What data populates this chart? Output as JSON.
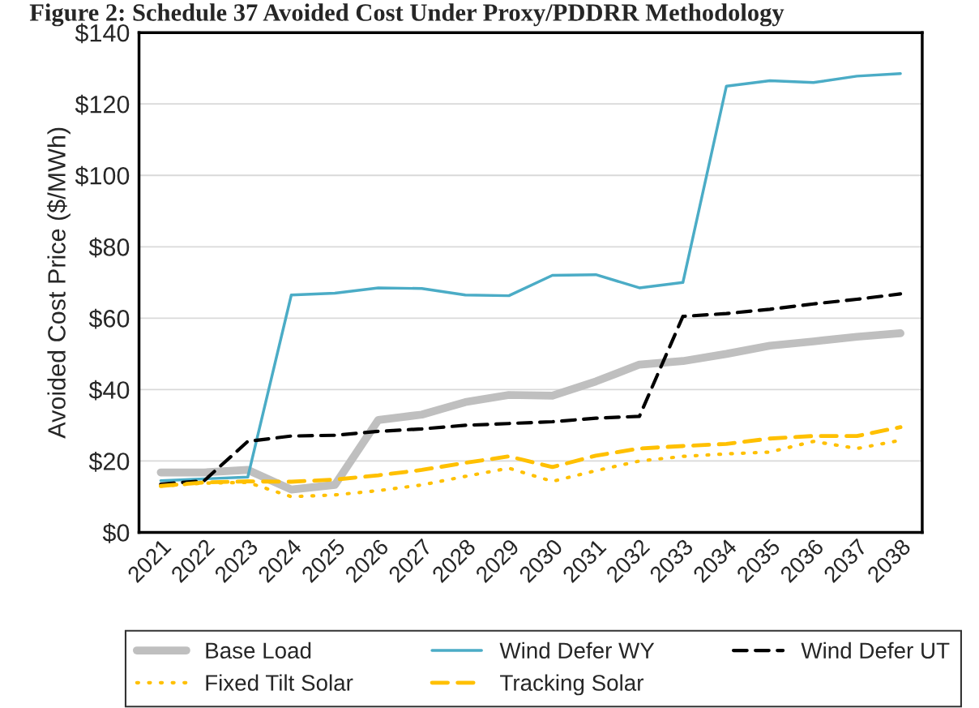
{
  "chart_data": {
    "type": "line",
    "title": "Figure 2: Schedule 37 Avoided Cost Under Proxy/PDDRR Methodology",
    "ylabel": "Avoided Cost Price ($/MWh)",
    "categories": [
      "2021",
      "2022",
      "2023",
      "2024",
      "2025",
      "2026",
      "2027",
      "2028",
      "2029",
      "2030",
      "2031",
      "2032",
      "2033",
      "2034",
      "2035",
      "2036",
      "2037",
      "2038"
    ],
    "series": [
      {
        "name": "Base Load",
        "color": "#bfbfbf",
        "line_style": "solid",
        "values": [
          16.8,
          16.8,
          17.5,
          12,
          13.3,
          31.5,
          33,
          36.5,
          38.5,
          38.3,
          42.3,
          47,
          48,
          50,
          52.3,
          53.5,
          54.8,
          55.8
        ]
      },
      {
        "name": "Wind Defer WY",
        "color": "#4bacc6",
        "line_style": "solid",
        "values": [
          14.5,
          15,
          15.5,
          66.5,
          67,
          68.5,
          68.3,
          66.5,
          66.3,
          72,
          72.2,
          68.5,
          70,
          125,
          126.5,
          126,
          127.8,
          128.5
        ]
      },
      {
        "name": "Wind Defer UT",
        "color": "#000000",
        "line_style": "dashed",
        "values": [
          13.5,
          14.5,
          25.5,
          27,
          27.2,
          28.3,
          29,
          30,
          30.5,
          31,
          32,
          32.5,
          60.5,
          61.3,
          62.5,
          64,
          65.3,
          66.8
        ]
      },
      {
        "name": "Fixed Tilt Solar",
        "color": "#ffc000",
        "line_style": "dotted",
        "values": [
          13,
          13.8,
          14,
          10,
          10.5,
          11.7,
          13.3,
          15.7,
          18,
          14.3,
          17.3,
          20,
          21.3,
          22,
          22.5,
          25.5,
          23.5,
          25.8
        ]
      },
      {
        "name": "Tracking Solar",
        "color": "#ffc000",
        "line_style": "dashed",
        "values": [
          13,
          14,
          14.3,
          14.2,
          14.8,
          16,
          17.5,
          19.5,
          21.3,
          18.3,
          21.5,
          23.5,
          24.2,
          24.8,
          26.3,
          27,
          27,
          29.5
        ]
      }
    ],
    "ylim": [
      0,
      140
    ],
    "yticks": [
      {
        "value": 0,
        "label": "$0"
      },
      {
        "value": 20,
        "label": "$20"
      },
      {
        "value": 40,
        "label": "$40"
      },
      {
        "value": 60,
        "label": "$60"
      },
      {
        "value": 80,
        "label": "$80"
      },
      {
        "value": 100,
        "label": "$100"
      },
      {
        "value": 120,
        "label": "$120"
      },
      {
        "value": 140,
        "label": "$140"
      }
    ],
    "grid": "y",
    "legend": "bottom",
    "marker": "none"
  }
}
